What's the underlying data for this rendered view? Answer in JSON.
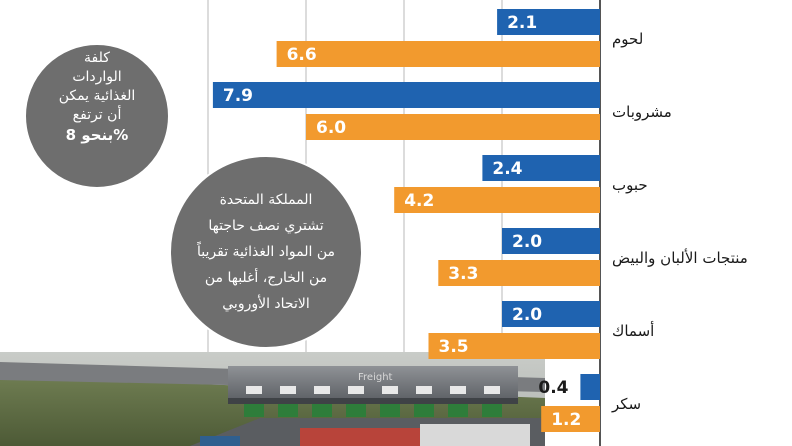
{
  "colors": {
    "series_a": "#1f63b0",
    "series_b": "#f29a2e",
    "bubble": "#6e6e6e",
    "grid": "#b9b9b9"
  },
  "chart_data": {
    "type": "bar",
    "orientation": "horizontal",
    "direction": "right-to-left",
    "categories": [
      "لحوم",
      "مشروبات",
      "حبوب",
      "منتجات الألبان والبيض",
      "أسماك",
      "سكر"
    ],
    "series": [
      {
        "values": [
          2.1,
          7.9,
          2.4,
          2.0,
          2.0,
          0.4
        ]
      },
      {
        "values": [
          6.6,
          6.0,
          4.2,
          3.3,
          3.5,
          1.2
        ]
      }
    ],
    "xlim": [
      0,
      8.5
    ],
    "grid": true,
    "legend": "none"
  },
  "bubbles": {
    "top": [
      "كلفة",
      "الواردات",
      "الغذائية يمكن",
      "أن  ترتفع",
      "بنحو 8%"
    ],
    "middle": [
      "المملكة المتحدة",
      "تشتري نصف حاجتها",
      "من المواد الغذائية تقريباً",
      "من الخارج، أغلبها من",
      "الاتحاد الأوروبي"
    ]
  },
  "photo": {
    "sign_text": "Freight"
  }
}
